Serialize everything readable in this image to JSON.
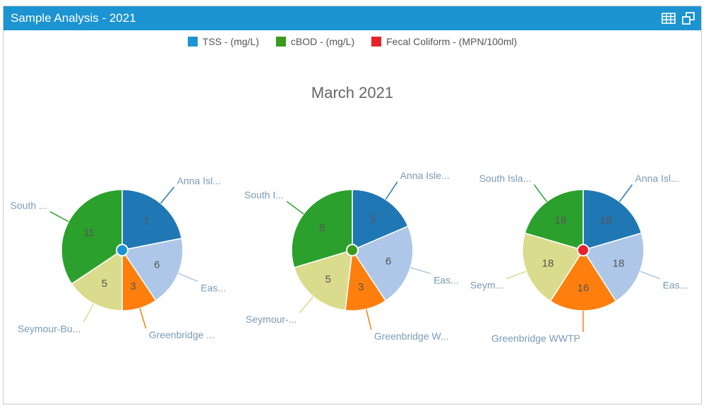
{
  "header": {
    "title": "Sample Analysis - 2021",
    "table_icon": "table-icon",
    "popout_icon": "popout-icon"
  },
  "legend": [
    {
      "label": "TSS - (mg/L)",
      "color": "#1b94d1"
    },
    {
      "label": "cBOD - (mg/L)",
      "color": "#3a9a1f"
    },
    {
      "label": "Fecal Coliform - (MPN/100ml)",
      "color": "#e8212b"
    }
  ],
  "chart_data": {
    "type": "pie",
    "title": "March 2021",
    "slice_colors": [
      "#1f77b4",
      "#aec7e8",
      "#ff7f0e",
      "#dbdb8d",
      "#2ca02c"
    ],
    "pies": [
      {
        "series": "TSS - (mg/L)",
        "center_color": "#1b94d1",
        "slices": [
          {
            "label": "Anna Isl...",
            "value": 7
          },
          {
            "label": "Eas...",
            "value": 6
          },
          {
            "label": "Greenbridge ...",
            "value": 3
          },
          {
            "label": "Seymour-Bu...",
            "value": 5
          },
          {
            "label": "South ...",
            "value": 11
          }
        ]
      },
      {
        "series": "cBOD - (mg/L)",
        "center_color": "#3a9a1f",
        "slices": [
          {
            "label": "Anna Isle...",
            "value": 5
          },
          {
            "label": "Eas...",
            "value": 6
          },
          {
            "label": "Greenbridge W...",
            "value": 3
          },
          {
            "label": "Seymour-...",
            "value": 5
          },
          {
            "label": "South I...",
            "value": 8
          }
        ]
      },
      {
        "series": "Fecal Coliform - (MPN/100ml)",
        "center_color": "#e8212b",
        "slices": [
          {
            "label": "Anna Isl...",
            "value": 18
          },
          {
            "label": "Eas...",
            "value": 18
          },
          {
            "label": "Greenbridge WWTP",
            "value": 16
          },
          {
            "label": "Seym...",
            "value": 18
          },
          {
            "label": "South Isla...",
            "value": 18
          }
        ]
      }
    ]
  }
}
